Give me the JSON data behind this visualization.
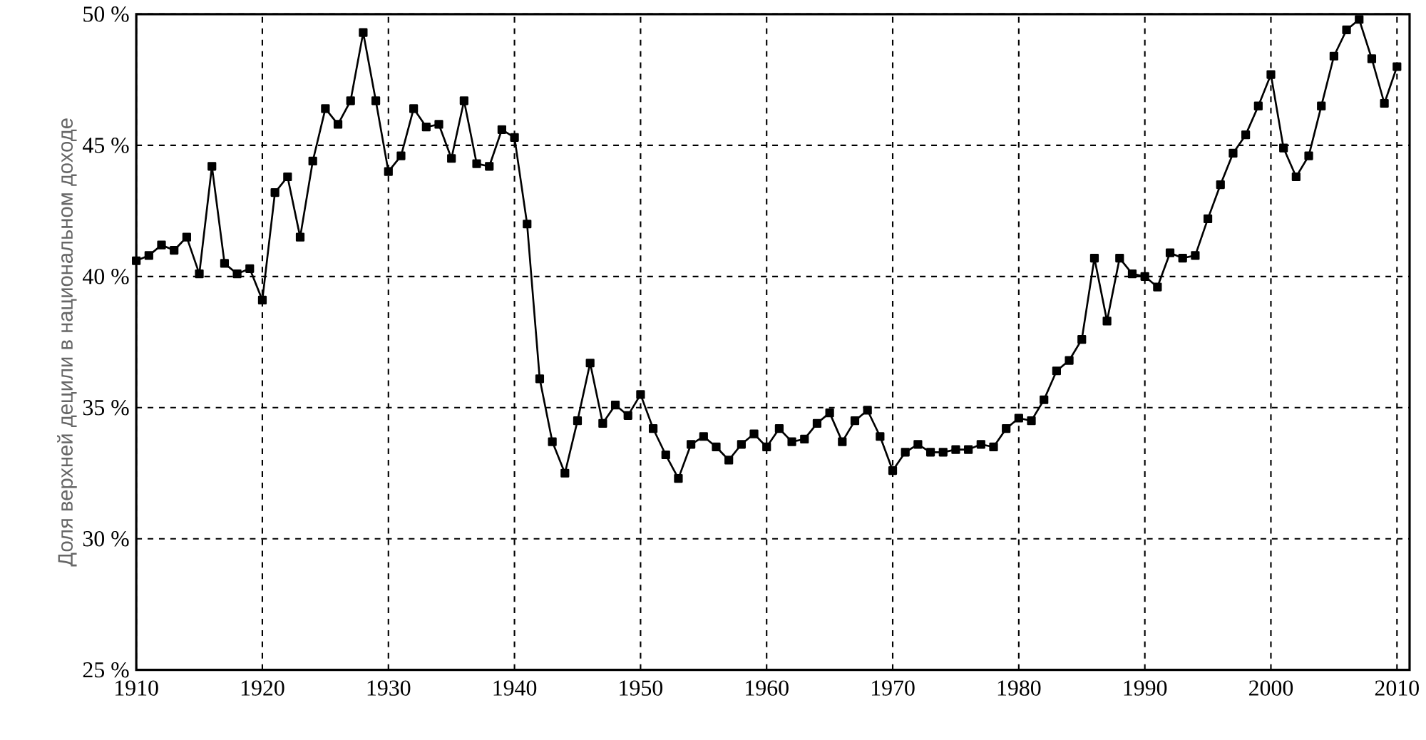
{
  "chart_data": {
    "type": "line",
    "ylabel": "Доля верхней децили в национальном доходе",
    "x": [
      1910,
      1911,
      1912,
      1913,
      1914,
      1915,
      1916,
      1917,
      1918,
      1919,
      1920,
      1921,
      1922,
      1923,
      1924,
      1925,
      1926,
      1927,
      1928,
      1929,
      1930,
      1931,
      1932,
      1933,
      1934,
      1935,
      1936,
      1937,
      1938,
      1939,
      1940,
      1941,
      1942,
      1943,
      1944,
      1945,
      1946,
      1947,
      1948,
      1949,
      1950,
      1951,
      1952,
      1953,
      1954,
      1955,
      1956,
      1957,
      1958,
      1959,
      1960,
      1961,
      1962,
      1963,
      1964,
      1965,
      1966,
      1967,
      1968,
      1969,
      1970,
      1971,
      1972,
      1973,
      1974,
      1975,
      1976,
      1977,
      1978,
      1979,
      1980,
      1981,
      1982,
      1983,
      1984,
      1985,
      1986,
      1987,
      1988,
      1989,
      1990,
      1991,
      1992,
      1993,
      1994,
      1995,
      1996,
      1997,
      1998,
      1999,
      2000,
      2001,
      2002,
      2003,
      2004,
      2005,
      2006,
      2007,
      2008,
      2009,
      2010
    ],
    "series": [
      {
        "color": "#000000",
        "values": [
          40.6,
          40.8,
          41.2,
          41.0,
          41.5,
          40.1,
          44.2,
          40.5,
          40.1,
          40.3,
          39.1,
          43.2,
          43.8,
          41.5,
          44.4,
          46.4,
          45.8,
          46.7,
          49.3,
          46.7,
          44.0,
          44.6,
          46.4,
          45.7,
          45.8,
          44.5,
          46.7,
          44.3,
          44.2,
          45.6,
          45.3,
          42.0,
          36.1,
          33.7,
          32.5,
          34.5,
          36.7,
          34.4,
          35.1,
          34.7,
          35.5,
          34.2,
          33.2,
          32.3,
          33.6,
          33.9,
          33.5,
          33.0,
          33.6,
          34.0,
          33.5,
          34.2,
          33.7,
          33.8,
          34.4,
          34.8,
          33.7,
          34.5,
          34.9,
          33.9,
          32.6,
          33.3,
          33.6,
          33.3,
          33.3,
          33.4,
          33.4,
          33.6,
          33.5,
          34.2,
          34.6,
          34.5,
          35.3,
          36.4,
          36.8,
          37.6,
          40.7,
          38.3,
          40.7,
          40.1,
          40.0,
          39.6,
          40.9,
          40.7,
          40.8,
          42.2,
          43.5,
          44.7,
          45.4,
          46.5,
          47.7,
          44.9,
          43.8,
          44.6,
          46.5,
          48.4,
          49.4,
          49.8,
          48.3,
          46.6,
          48.0
        ]
      }
    ],
    "xlim": [
      1910,
      2011
    ],
    "ylim": [
      25,
      50
    ],
    "xticks": [
      1910,
      1920,
      1930,
      1940,
      1950,
      1960,
      1970,
      1980,
      1990,
      2000,
      2010
    ],
    "yticks": [
      {
        "value": 25,
        "label": "25 %"
      },
      {
        "value": 30,
        "label": "30 %"
      },
      {
        "value": 35,
        "label": "35 %"
      },
      {
        "value": 40,
        "label": "40 %"
      },
      {
        "value": 45,
        "label": "45 %"
      },
      {
        "value": 50,
        "label": "50 %"
      }
    ],
    "grid": true,
    "marker": "square",
    "line_style": "solid"
  }
}
